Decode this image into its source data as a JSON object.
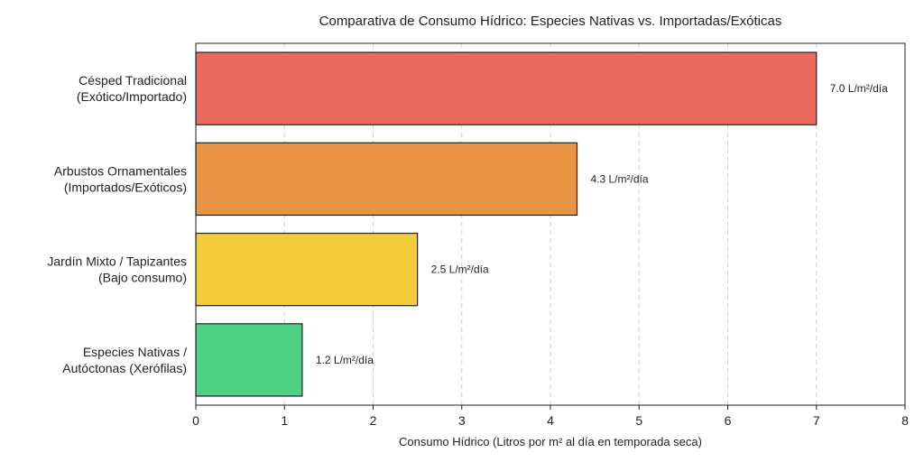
{
  "chart_data": {
    "type": "bar",
    "orientation": "horizontal",
    "title": "Comparativa de Consumo Hídrico: Especies Nativas vs. Importadas/Exóticas",
    "xlabel": "Consumo Hídrico (Litros por m² al día en temporada seca)",
    "ylabel": "",
    "xlim": [
      0,
      8
    ],
    "xticks": [
      "0",
      "1",
      "2",
      "3",
      "4",
      "5",
      "6",
      "7",
      "8"
    ],
    "grid": "vertical-dashed",
    "categories": [
      [
        "Césped Tradicional",
        "(Exótico/Importado)"
      ],
      [
        "Arbustos Ornamentales",
        "(Importados/Exóticos)"
      ],
      [
        "Jardín Mixto / Tapizantes",
        "(Bajo consumo)"
      ],
      [
        "Especies Nativas /",
        "Autóctonas (Xerófilas)"
      ]
    ],
    "values": [
      7.0,
      4.3,
      2.5,
      1.2
    ],
    "data_labels": [
      "7.0 L/m²/día",
      "4.3 L/m²/día",
      "2.5 L/m²/día",
      "1.2 L/m²/día"
    ],
    "colors": [
      "#ea6b5e",
      "#e99445",
      "#f2cc3a",
      "#4fd184"
    ]
  }
}
